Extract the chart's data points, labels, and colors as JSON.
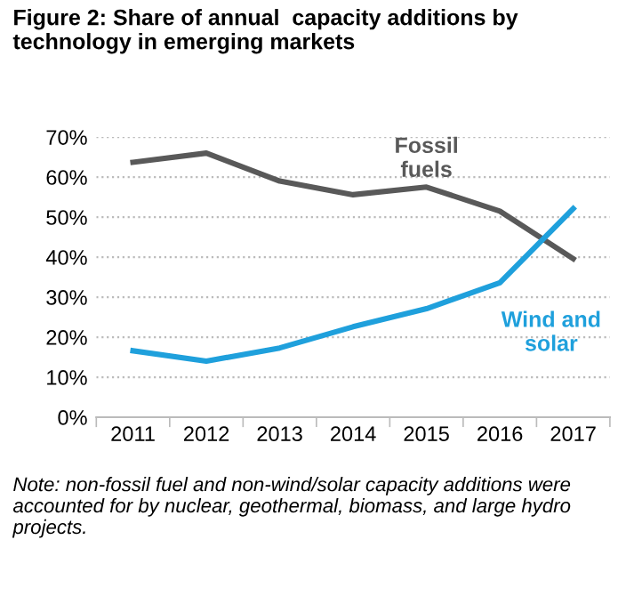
{
  "chart_data": {
    "type": "line",
    "title": "Figure 2: Share of annual  capacity additions by technology in emerging markets",
    "categories": [
      "2011",
      "2012",
      "2013",
      "2014",
      "2015",
      "2016",
      "2017"
    ],
    "series": [
      {
        "name": "Fossil fuels",
        "color": "#595959",
        "values": [
          63.7,
          66,
          59,
          55.6,
          57.5,
          51.5,
          39.6
        ]
      },
      {
        "name": "Wind and solar",
        "color": "#1fa0dc",
        "values": [
          16.6,
          14,
          17.3,
          22.6,
          27.1,
          33.6,
          52.1
        ]
      }
    ],
    "ylim": [
      0,
      70
    ],
    "yticks": [
      {
        "value": 0,
        "label": "0%"
      },
      {
        "value": 10,
        "label": "10%"
      },
      {
        "value": 20,
        "label": "20%"
      },
      {
        "value": 30,
        "label": "30%"
      },
      {
        "value": 40,
        "label": "40%"
      },
      {
        "value": 50,
        "label": "50%"
      },
      {
        "value": 60,
        "label": "60%"
      },
      {
        "value": 70,
        "label": "70%"
      }
    ],
    "grid": "y",
    "legend": false,
    "marker": "none",
    "line_style": "solid",
    "annotations": [
      "Note: non-fossil fuel and non-wind/solar capacity additions were accounted for by nuclear, geothermal, biomass, and large hydro projects."
    ]
  }
}
